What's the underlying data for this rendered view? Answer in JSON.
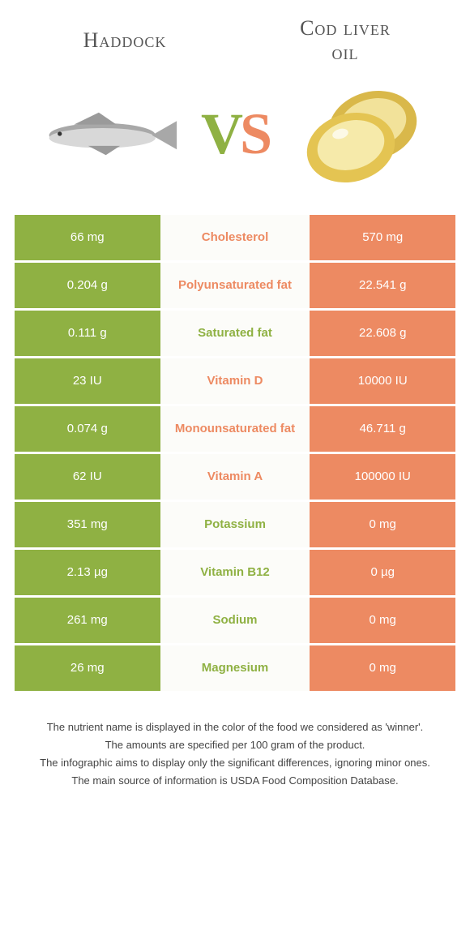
{
  "colors": {
    "left": "#8fb143",
    "right": "#ed8a62",
    "mid_bg": "#fcfcf9"
  },
  "header": {
    "left_title": "Haddock",
    "right_title_line1": "Cod liver",
    "right_title_line2": "oil"
  },
  "vs": {
    "v": "V",
    "s": "S"
  },
  "rows": [
    {
      "left": "66 mg",
      "mid": "Cholesterol",
      "right": "570 mg",
      "winner": "right"
    },
    {
      "left": "0.204 g",
      "mid": "Polyunsaturated fat",
      "right": "22.541 g",
      "winner": "right"
    },
    {
      "left": "0.111 g",
      "mid": "Saturated fat",
      "right": "22.608 g",
      "winner": "left"
    },
    {
      "left": "23 IU",
      "mid": "Vitamin D",
      "right": "10000 IU",
      "winner": "right"
    },
    {
      "left": "0.074 g",
      "mid": "Monounsaturated fat",
      "right": "46.711 g",
      "winner": "right"
    },
    {
      "left": "62 IU",
      "mid": "Vitamin A",
      "right": "100000 IU",
      "winner": "right"
    },
    {
      "left": "351 mg",
      "mid": "Potassium",
      "right": "0 mg",
      "winner": "left"
    },
    {
      "left": "2.13 µg",
      "mid": "Vitamin B12",
      "right": "0 µg",
      "winner": "left"
    },
    {
      "left": "261 mg",
      "mid": "Sodium",
      "right": "0 mg",
      "winner": "left"
    },
    {
      "left": "26 mg",
      "mid": "Magnesium",
      "right": "0 mg",
      "winner": "left"
    }
  ],
  "footnotes": [
    "The nutrient name is displayed in the color of the food we considered as 'winner'.",
    "The amounts are specified per 100 gram of the product.",
    "The infographic aims to display only the significant differences, ignoring minor ones.",
    "The main source of information is USDA Food Composition Database."
  ]
}
